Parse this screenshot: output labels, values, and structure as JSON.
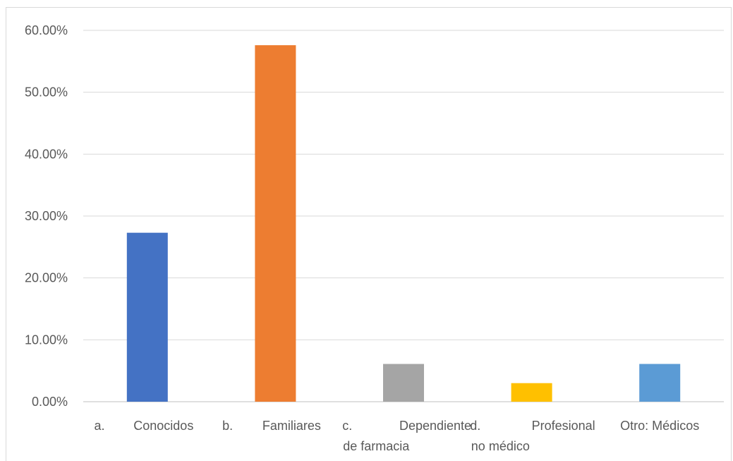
{
  "chart_data": {
    "type": "bar",
    "categories": [
      [
        "a.",
        "Conocidos"
      ],
      [
        "b.",
        "Familiares"
      ],
      [
        "c.",
        "Dependiente",
        "de farmacia"
      ],
      [
        "d.",
        "Profesional",
        "no médico"
      ],
      [
        "Otro: Médicos"
      ]
    ],
    "values": [
      27.3,
      57.6,
      6.1,
      3.0,
      6.1
    ],
    "colors": [
      "#4472c4",
      "#ed7d31",
      "#a5a5a5",
      "#ffc000",
      "#5b9bd5"
    ],
    "yticks": [
      "0.00%",
      "10.00%",
      "20.00%",
      "30.00%",
      "40.00%",
      "50.00%",
      "60.00%"
    ],
    "ylim": [
      0,
      60
    ],
    "title": "",
    "xlabel": "",
    "ylabel": "",
    "grid": true,
    "legend": "none"
  }
}
